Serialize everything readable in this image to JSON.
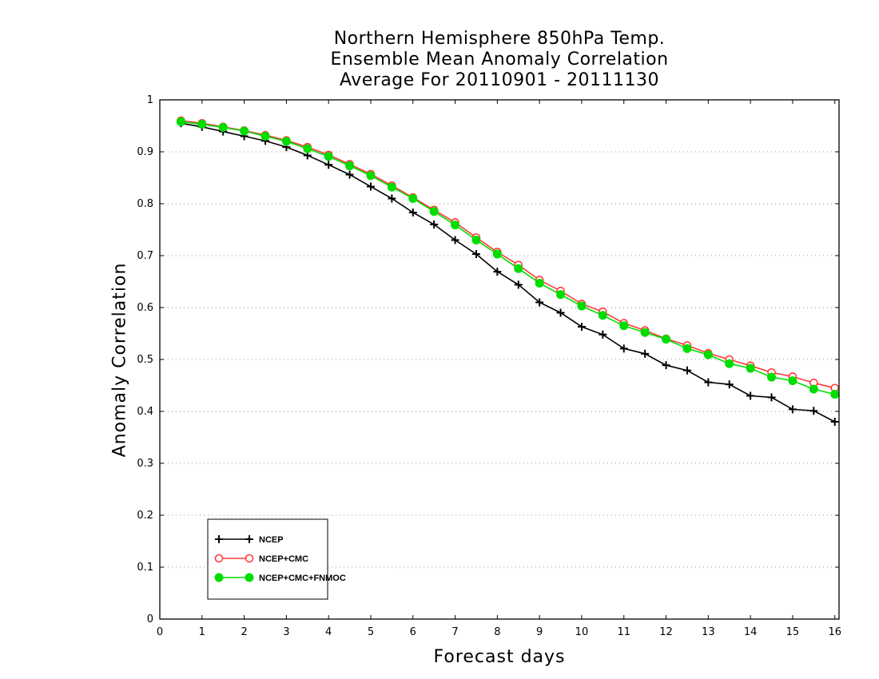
{
  "chart_data": {
    "type": "line",
    "title": [
      "Northern Hemisphere 850hPa Temp.",
      "Ensemble Mean Anomaly Correlation",
      "Average For 20110901 - 20111130"
    ],
    "xlabel": "Forecast days",
    "ylabel": "Anomaly Correlation",
    "xlim": [
      0,
      16.1
    ],
    "ylim": [
      0,
      1
    ],
    "xticks": [
      0,
      1,
      2,
      3,
      4,
      5,
      6,
      7,
      8,
      9,
      10,
      11,
      12,
      13,
      14,
      15,
      16
    ],
    "yticks": [
      0,
      0.1,
      0.2,
      0.3,
      0.4,
      0.5,
      0.6,
      0.7,
      0.8,
      0.9,
      1
    ],
    "ytick_labels": [
      "0",
      "0.1",
      "0.2",
      "0.3",
      "0.4",
      "0.5",
      "0.6",
      "0.7",
      "0.8",
      "0.9",
      "1"
    ],
    "grid": "horizontal-dotted",
    "legend_position": "bottom-left",
    "x": [
      0.5,
      1,
      1.5,
      2,
      2.5,
      3,
      3.5,
      4,
      4.5,
      5,
      5.5,
      6,
      6.5,
      7,
      7.5,
      8,
      8.5,
      9,
      9.5,
      10,
      10.5,
      11,
      11.5,
      12,
      12.5,
      13,
      13.5,
      14,
      14.5,
      15,
      15.5,
      16
    ],
    "series": [
      {
        "name": "NCEP",
        "color": "#000000",
        "marker": "plus",
        "values": [
          0.955,
          0.948,
          0.939,
          0.93,
          0.921,
          0.909,
          0.893,
          0.875,
          0.856,
          0.833,
          0.81,
          0.783,
          0.76,
          0.73,
          0.703,
          0.669,
          0.644,
          0.61,
          0.59,
          0.563,
          0.548,
          0.521,
          0.511,
          0.489,
          0.479,
          0.456,
          0.452,
          0.43,
          0.427,
          0.404,
          0.401,
          0.38
        ]
      },
      {
        "name": "NCEP+CMC",
        "color": "#ff3b3b",
        "marker": "open-circle",
        "values": [
          0.96,
          0.955,
          0.948,
          0.941,
          0.932,
          0.922,
          0.909,
          0.894,
          0.876,
          0.857,
          0.835,
          0.812,
          0.788,
          0.764,
          0.735,
          0.707,
          0.682,
          0.653,
          0.632,
          0.607,
          0.592,
          0.57,
          0.556,
          0.54,
          0.527,
          0.512,
          0.5,
          0.488,
          0.475,
          0.467,
          0.455,
          0.445
        ]
      },
      {
        "name": "NCEP+CMC+FNMOC",
        "color": "#00dd00",
        "marker": "filled-circle",
        "values": [
          0.958,
          0.953,
          0.947,
          0.94,
          0.93,
          0.92,
          0.906,
          0.891,
          0.873,
          0.854,
          0.832,
          0.81,
          0.785,
          0.759,
          0.73,
          0.703,
          0.675,
          0.647,
          0.625,
          0.603,
          0.585,
          0.565,
          0.552,
          0.539,
          0.521,
          0.509,
          0.492,
          0.483,
          0.466,
          0.459,
          0.443,
          0.433
        ]
      }
    ]
  }
}
